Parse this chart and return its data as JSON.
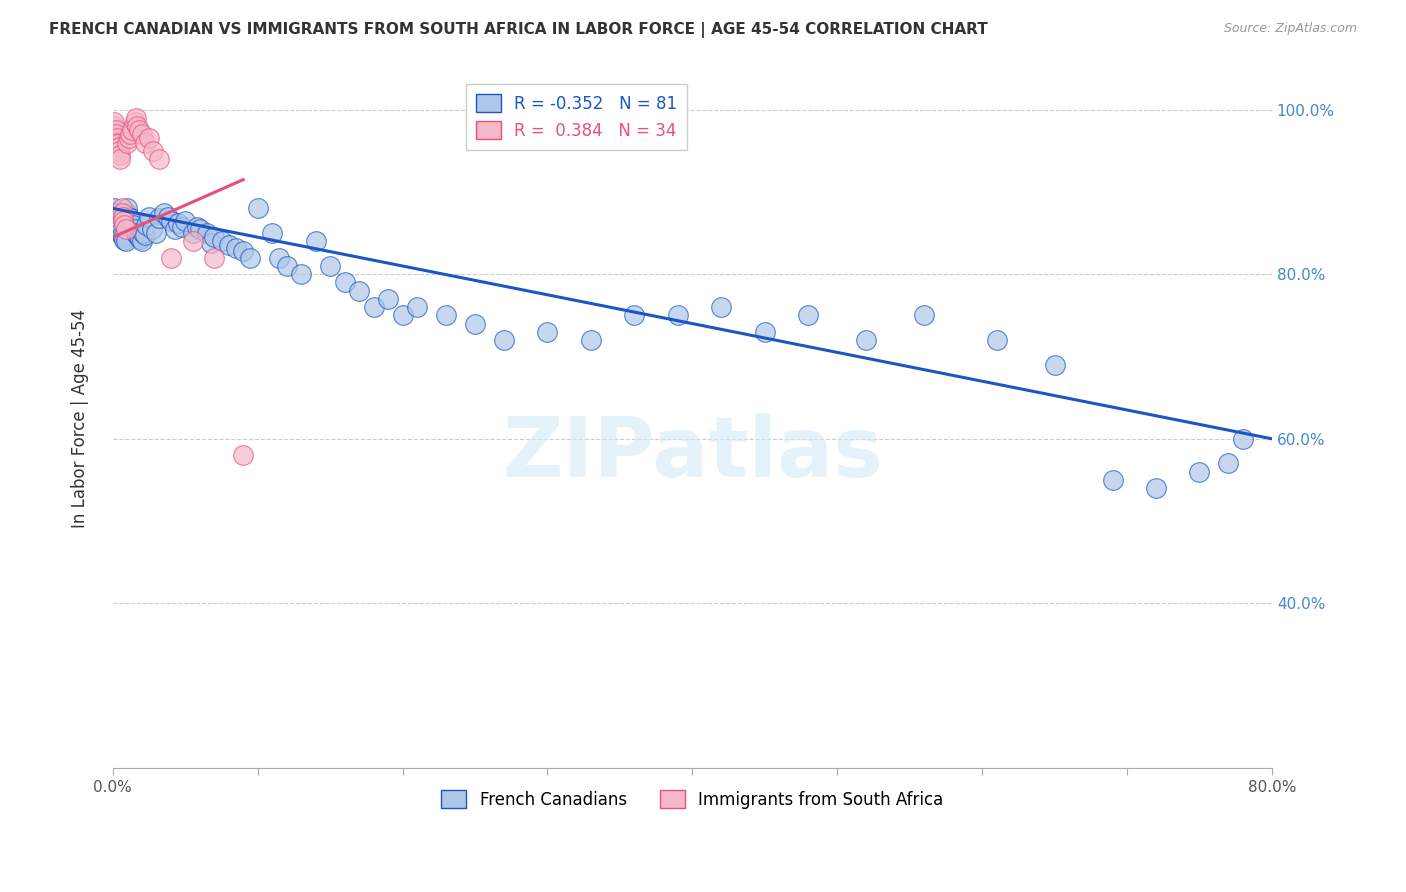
{
  "title": "FRENCH CANADIAN VS IMMIGRANTS FROM SOUTH AFRICA IN LABOR FORCE | AGE 45-54 CORRELATION CHART",
  "source": "Source: ZipAtlas.com",
  "xlabel": "",
  "ylabel": "In Labor Force | Age 45-54",
  "xlim": [
    0.0,
    0.8
  ],
  "ylim": [
    0.2,
    1.05
  ],
  "xticks": [
    0.0,
    0.1,
    0.2,
    0.3,
    0.4,
    0.5,
    0.6,
    0.7,
    0.8
  ],
  "yticks": [
    0.2,
    0.4,
    0.6,
    0.8,
    1.0
  ],
  "ytick_labels": [
    "",
    "40.0%",
    "60.0%",
    "80.0%",
    "100.0%"
  ],
  "xtick_labels": [
    "0.0%",
    "",
    "",
    "",
    "",
    "",
    "",
    "",
    "80.0%"
  ],
  "blue_r": -0.352,
  "blue_n": 81,
  "pink_r": 0.384,
  "pink_n": 34,
  "blue_color": "#aec6e8",
  "pink_color": "#f5b8c8",
  "blue_line_color": "#1a56c4",
  "pink_line_color": "#e8507a",
  "legend1": "French Canadians",
  "legend2": "Immigrants from South Africa",
  "blue_scatter_x": [
    0.001,
    0.002,
    0.003,
    0.003,
    0.004,
    0.004,
    0.005,
    0.005,
    0.006,
    0.007,
    0.008,
    0.009,
    0.01,
    0.01,
    0.011,
    0.012,
    0.013,
    0.014,
    0.015,
    0.016,
    0.017,
    0.018,
    0.019,
    0.02,
    0.021,
    0.022,
    0.023,
    0.025,
    0.027,
    0.03,
    0.032,
    0.035,
    0.038,
    0.04,
    0.043,
    0.045,
    0.048,
    0.05,
    0.055,
    0.058,
    0.06,
    0.065,
    0.068,
    0.07,
    0.075,
    0.08,
    0.085,
    0.09,
    0.095,
    0.1,
    0.11,
    0.115,
    0.12,
    0.13,
    0.14,
    0.15,
    0.16,
    0.17,
    0.18,
    0.19,
    0.2,
    0.21,
    0.23,
    0.25,
    0.27,
    0.3,
    0.33,
    0.36,
    0.39,
    0.42,
    0.45,
    0.48,
    0.52,
    0.56,
    0.61,
    0.65,
    0.69,
    0.72,
    0.75,
    0.77,
    0.78
  ],
  "blue_scatter_y": [
    0.88,
    0.875,
    0.87,
    0.865,
    0.86,
    0.858,
    0.855,
    0.85,
    0.848,
    0.845,
    0.842,
    0.84,
    0.875,
    0.88,
    0.87,
    0.868,
    0.865,
    0.86,
    0.855,
    0.85,
    0.848,
    0.845,
    0.843,
    0.84,
    0.85,
    0.848,
    0.86,
    0.87,
    0.855,
    0.85,
    0.868,
    0.875,
    0.87,
    0.865,
    0.855,
    0.862,
    0.858,
    0.865,
    0.85,
    0.858,
    0.855,
    0.85,
    0.838,
    0.845,
    0.84,
    0.835,
    0.832,
    0.828,
    0.82,
    0.88,
    0.85,
    0.82,
    0.81,
    0.8,
    0.84,
    0.81,
    0.79,
    0.78,
    0.76,
    0.77,
    0.75,
    0.76,
    0.75,
    0.74,
    0.72,
    0.73,
    0.72,
    0.75,
    0.75,
    0.76,
    0.73,
    0.75,
    0.72,
    0.75,
    0.72,
    0.69,
    0.55,
    0.54,
    0.56,
    0.57,
    0.6
  ],
  "pink_scatter_x": [
    0.001,
    0.001,
    0.002,
    0.002,
    0.003,
    0.003,
    0.003,
    0.004,
    0.004,
    0.005,
    0.005,
    0.006,
    0.006,
    0.007,
    0.007,
    0.008,
    0.009,
    0.01,
    0.011,
    0.012,
    0.013,
    0.015,
    0.016,
    0.017,
    0.018,
    0.02,
    0.022,
    0.025,
    0.028,
    0.032,
    0.04,
    0.055,
    0.07,
    0.09
  ],
  "pink_scatter_y": [
    0.98,
    0.985,
    0.975,
    0.97,
    0.965,
    0.96,
    0.958,
    0.955,
    0.95,
    0.945,
    0.94,
    0.88,
    0.875,
    0.87,
    0.865,
    0.86,
    0.855,
    0.96,
    0.965,
    0.97,
    0.975,
    0.985,
    0.99,
    0.98,
    0.975,
    0.97,
    0.96,
    0.965,
    0.95,
    0.94,
    0.82,
    0.84,
    0.82,
    0.58
  ],
  "blue_trendline_x": [
    0.0,
    0.8
  ],
  "blue_trendline_y": [
    0.88,
    0.6
  ],
  "pink_trendline_x": [
    0.0,
    0.09
  ],
  "pink_trendline_y": [
    0.845,
    0.915
  ]
}
